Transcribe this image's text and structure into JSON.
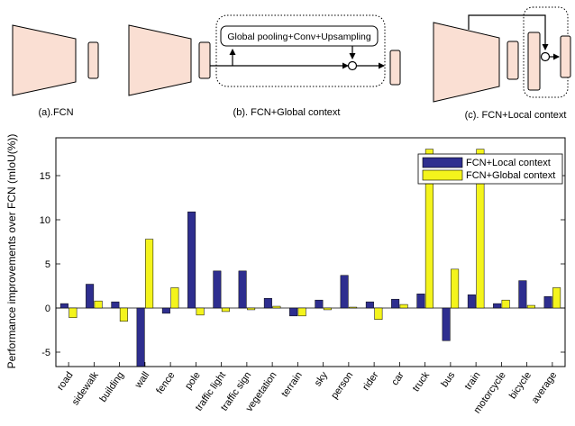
{
  "diagram": {
    "panel_a_caption": "(a).FCN",
    "panel_b_caption": "(b). FCN+Global context",
    "panel_c_caption": "(c). FCN+Local context",
    "global_module_label": "Global pooling+Conv+Upsampling"
  },
  "chart_data": {
    "type": "bar",
    "title": "",
    "xlabel": "",
    "ylabel": "Performance improvements over FCN (mIoU(%))",
    "ylim": [
      -7.5,
      18
    ],
    "yticks": [
      -5,
      0,
      5,
      10,
      15
    ],
    "grid": false,
    "legend_position": "top-right",
    "categories": [
      "road",
      "sidewalk",
      "building",
      "wall",
      "fence",
      "pole",
      "traffic light",
      "traffic sign",
      "vegetation",
      "terrain",
      "sky",
      "person",
      "rider",
      "car",
      "truck",
      "bus",
      "train",
      "motorcycle",
      "bicycle",
      "average"
    ],
    "series": [
      {
        "name": "FCN+Local context",
        "color": "#2e2e8f",
        "values": [
          0.5,
          2.7,
          0.7,
          -6.7,
          -0.6,
          10.9,
          4.2,
          4.2,
          1.1,
          -0.9,
          0.9,
          3.7,
          0.7,
          1.0,
          1.6,
          -3.7,
          1.5,
          0.5,
          3.1,
          1.3
        ]
      },
      {
        "name": "FCN+Global context",
        "color": "#f4f41c",
        "values": [
          -1.1,
          0.8,
          -1.5,
          7.8,
          2.3,
          -0.8,
          -0.4,
          -0.2,
          0.2,
          -0.9,
          -0.2,
          0.1,
          -1.3,
          0.4,
          18.0,
          4.4,
          18.0,
          0.9,
          0.3,
          2.3
        ]
      }
    ]
  }
}
